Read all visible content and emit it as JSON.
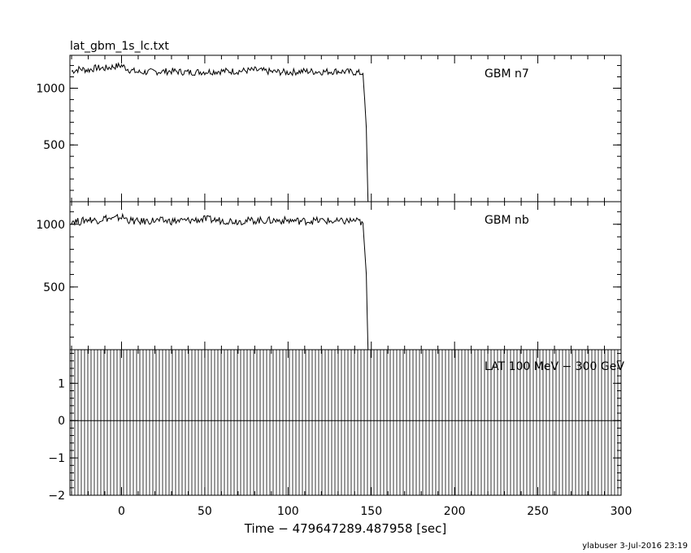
{
  "file_title": "lat_gbm_1s_lc.txt",
  "footer": "ylabuser  3-Jul-2016 23:19",
  "colors": {
    "line": "#000000",
    "background": "#ffffff"
  },
  "chart_data": {
    "type": "line",
    "xlabel": "Time − 479647289.487958 [sec]",
    "xlim": [
      -31,
      300
    ],
    "xticks": [
      0,
      50,
      100,
      150,
      200,
      250,
      300
    ],
    "xtick_labels": [
      "0",
      "50",
      "100",
      "150",
      "200",
      "250",
      "300"
    ],
    "grid": false,
    "panels": [
      {
        "label": "GBM n7",
        "ylim": [
          0,
          1290
        ],
        "yticks": [
          500,
          1000
        ],
        "ytick_labels": [
          "500",
          "1000"
        ],
        "series": [
          {
            "x": [
              -30,
              -25,
              -20,
              -15,
              -10,
              -5,
              0,
              5,
              10,
              20,
              30,
              40,
              50,
              60,
              70,
              80,
              90,
              100,
              110,
              120,
              130,
              140,
              145,
              146,
              147,
              148
            ],
            "y": [
              1150,
              1170,
              1160,
              1180,
              1175,
              1190,
              1200,
              1160,
              1140,
              1145,
              1150,
              1140,
              1145,
              1150,
              1150,
              1160,
              1145,
              1140,
              1150,
              1145,
              1150,
              1140,
              1130,
              900,
              650,
              0
            ]
          }
        ]
      },
      {
        "label": "GBM nb",
        "ylim": [
          0,
          1180
        ],
        "yticks": [
          500,
          1000
        ],
        "ytick_labels": [
          "500",
          "1000"
        ],
        "series": [
          {
            "x": [
              -30,
              -25,
              -20,
              -15,
              -10,
              -5,
              0,
              5,
              10,
              20,
              30,
              40,
              50,
              60,
              70,
              80,
              90,
              100,
              110,
              120,
              130,
              140,
              145,
              146,
              147,
              148
            ],
            "y": [
              1030,
              1020,
              1040,
              1030,
              1050,
              1040,
              1060,
              1030,
              1020,
              1030,
              1025,
              1030,
              1040,
              1030,
              1025,
              1030,
              1030,
              1030,
              1025,
              1030,
              1020,
              1030,
              1010,
              800,
              600,
              0
            ]
          }
        ]
      },
      {
        "label": "LAT 100 MeV − 300 GeV",
        "ylim": [
          -2,
          1.9
        ],
        "yticks": [
          -2,
          -1,
          0,
          1
        ],
        "ytick_labels": [
          "−2",
          "−1",
          "0",
          "1"
        ],
        "series": [
          {
            "x": [
              -31,
              300
            ],
            "y": [
              0,
              0
            ]
          }
        ]
      }
    ]
  }
}
